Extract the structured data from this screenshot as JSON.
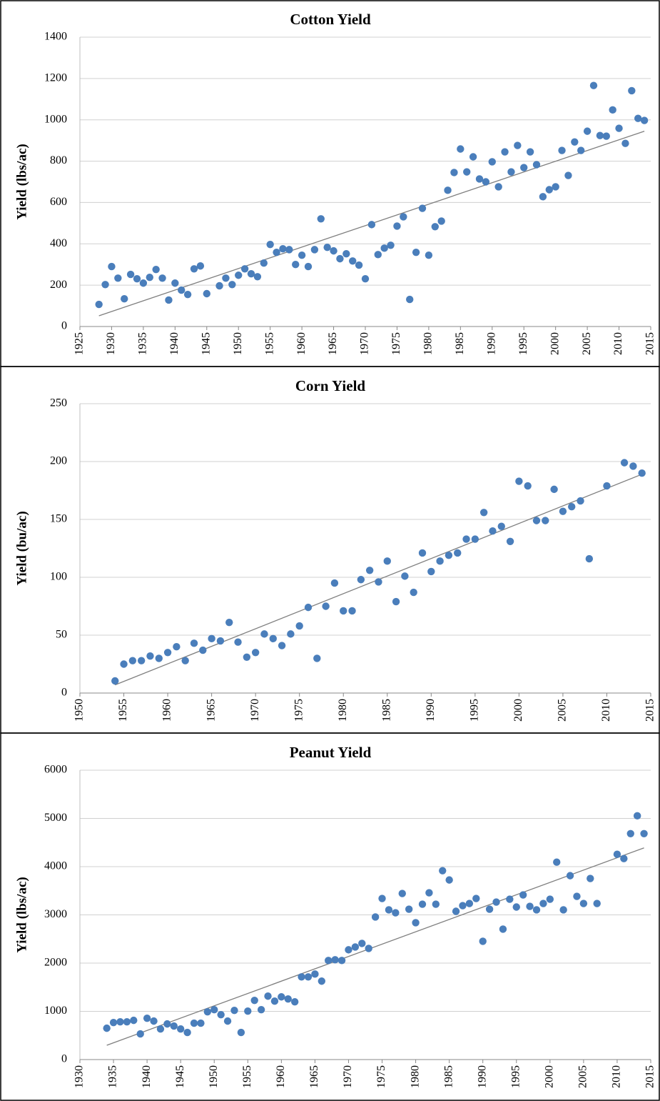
{
  "chart_data": [
    {
      "type": "scatter",
      "title": "Cotton Yield",
      "y_label": "Yield (lbs/ac)",
      "color": "#4a7ebb",
      "x": [
        1928,
        1929,
        1930,
        1931,
        1932,
        1933,
        1934,
        1935,
        1936,
        1937,
        1938,
        1939,
        1940,
        1941,
        1942,
        1943,
        1944,
        1945,
        1947,
        1948,
        1949,
        1950,
        1951,
        1952,
        1953,
        1954,
        1955,
        1956,
        1957,
        1958,
        1959,
        1960,
        1961,
        1962,
        1963,
        1964,
        1965,
        1966,
        1967,
        1968,
        1969,
        1970,
        1971,
        1972,
        1973,
        1974,
        1975,
        1976,
        1977,
        1978,
        1979,
        1980,
        1981,
        1982,
        1983,
        1984,
        1985,
        1986,
        1987,
        1988,
        1989,
        1990,
        1991,
        1992,
        1993,
        1994,
        1995,
        1996,
        1997,
        1998,
        1999,
        2000,
        2001,
        2002,
        2003,
        2004,
        2005,
        2006,
        2007,
        2008,
        2009,
        2010,
        2011,
        2012,
        2013,
        2014
      ],
      "values": [
        107,
        203,
        290,
        234,
        134,
        252,
        231,
        210,
        238,
        276,
        234,
        128,
        210,
        176,
        155,
        279,
        293,
        159,
        197,
        234,
        203,
        248,
        279,
        255,
        241,
        307,
        397,
        359,
        376,
        372,
        300,
        345,
        290,
        372,
        521,
        383,
        366,
        328,
        352,
        317,
        297,
        231,
        493,
        348,
        379,
        393,
        486,
        531,
        131,
        359,
        572,
        345,
        483,
        510,
        659,
        745,
        859,
        748,
        821,
        714,
        700,
        797,
        676,
        845,
        748,
        876,
        769,
        845,
        783,
        628,
        662,
        676,
        852,
        731,
        893,
        852,
        945,
        1166,
        924,
        921,
        1048,
        959,
        886,
        1141,
        1007,
        997
      ],
      "trendline": {
        "x": [
          1928,
          2014
        ],
        "values": [
          52,
          945
        ],
        "color": "#7f7f7f"
      },
      "xlim": [
        1925,
        2015
      ],
      "xticks": [
        1925,
        1930,
        1935,
        1940,
        1945,
        1950,
        1955,
        1960,
        1965,
        1970,
        1975,
        1980,
        1985,
        1990,
        1995,
        2000,
        2005,
        2010,
        2015
      ],
      "ylim": [
        0,
        1400
      ],
      "yticks": [
        0,
        200,
        400,
        600,
        800,
        1000,
        1200,
        1400
      ],
      "grid": true
    },
    {
      "type": "scatter",
      "title": "Corn Yield",
      "y_label": "Yield (bu/ac)",
      "color": "#4a7ebb",
      "x": [
        1954,
        1955,
        1956,
        1957,
        1958,
        1959,
        1960,
        1961,
        1962,
        1963,
        1964,
        1965,
        1966,
        1967,
        1968,
        1969,
        1970,
        1971,
        1972,
        1973,
        1974,
        1975,
        1976,
        1977,
        1978,
        1979,
        1980,
        1981,
        1982,
        1983,
        1984,
        1985,
        1986,
        1987,
        1988,
        1989,
        1990,
        1991,
        1992,
        1993,
        1994,
        1995,
        1996,
        1997,
        1998,
        1999,
        2000,
        2001,
        2002,
        2003,
        2004,
        2005,
        2006,
        2007,
        2008,
        2010,
        2012,
        2013,
        2014
      ],
      "values": [
        10.5,
        25,
        28,
        28,
        32,
        30,
        35,
        40,
        28,
        43,
        37,
        47,
        45,
        61,
        44,
        31,
        35,
        51,
        47,
        41,
        51,
        58,
        74,
        30,
        75,
        95,
        71,
        71,
        98,
        106,
        96,
        114,
        79,
        101,
        87,
        121,
        105,
        114,
        119,
        121,
        133,
        133,
        156,
        140,
        144,
        131,
        183,
        179,
        149,
        149,
        176,
        157,
        161,
        166,
        116,
        179,
        199,
        196,
        190
      ],
      "trendline": {
        "x": [
          1954,
          2014
        ],
        "values": [
          7,
          189
        ],
        "color": "#7f7f7f"
      },
      "xlim": [
        1950,
        2015
      ],
      "xticks": [
        1950,
        1955,
        1960,
        1965,
        1970,
        1975,
        1980,
        1985,
        1990,
        1995,
        2000,
        2005,
        2010,
        2015
      ],
      "ylim": [
        0,
        250
      ],
      "yticks": [
        0,
        50,
        100,
        150,
        200,
        250
      ],
      "grid": true
    },
    {
      "type": "scatter",
      "title": "Peanut Yield",
      "y_label": "Yield (lbs/ac)",
      "color": "#4a7ebb",
      "x": [
        1934,
        1935,
        1936,
        1937,
        1938,
        1939,
        1940,
        1941,
        1942,
        1943,
        1944,
        1945,
        1946,
        1947,
        1948,
        1949,
        1950,
        1951,
        1952,
        1953,
        1954,
        1955,
        1956,
        1957,
        1958,
        1959,
        1960,
        1961,
        1962,
        1963,
        1964,
        1965,
        1966,
        1967,
        1968,
        1969,
        1970,
        1971,
        1972,
        1973,
        1974,
        1975,
        1976,
        1977,
        1978,
        1979,
        1980,
        1981,
        1982,
        1983,
        1984,
        1985,
        1986,
        1987,
        1988,
        1989,
        1990,
        1991,
        1992,
        1993,
        1994,
        1995,
        1996,
        1997,
        1998,
        1999,
        2000,
        2001,
        2002,
        2003,
        2004,
        2005,
        2006,
        2007,
        2010,
        2011,
        2012,
        2013,
        2014
      ],
      "values": [
        650,
        768,
        783,
        783,
        813,
        532,
        857,
        798,
        635,
        739,
        695,
        635,
        562,
        754,
        754,
        990,
        1034,
        931,
        798,
        1020,
        562,
        1005,
        1227,
        1034,
        1315,
        1212,
        1300,
        1256,
        1197,
        1714,
        1714,
        1773,
        1626,
        2054,
        2069,
        2054,
        2276,
        2335,
        2409,
        2305,
        2956,
        3340,
        3104,
        3044,
        3443,
        3118,
        2838,
        3222,
        3458,
        3222,
        3916,
        3724,
        3074,
        3192,
        3236,
        3340,
        2453,
        3118,
        3266,
        2704,
        3325,
        3163,
        3414,
        3177,
        3104,
        3236,
        3325,
        4093,
        3104,
        3813,
        3384,
        3236,
        3754,
        3236,
        4256,
        4167,
        4685,
        5054,
        4685
      ],
      "trendline": {
        "x": [
          1934,
          2014
        ],
        "values": [
          296,
          4389
        ],
        "color": "#7f7f7f"
      },
      "xlim": [
        1930,
        2015
      ],
      "xticks": [
        1930,
        1935,
        1940,
        1945,
        1950,
        1955,
        1960,
        1965,
        1970,
        1975,
        1980,
        1985,
        1990,
        1995,
        2000,
        2005,
        2010,
        2015
      ],
      "ylim": [
        0,
        6000
      ],
      "yticks": [
        0,
        1000,
        2000,
        3000,
        4000,
        5000,
        6000
      ],
      "grid": true
    }
  ]
}
